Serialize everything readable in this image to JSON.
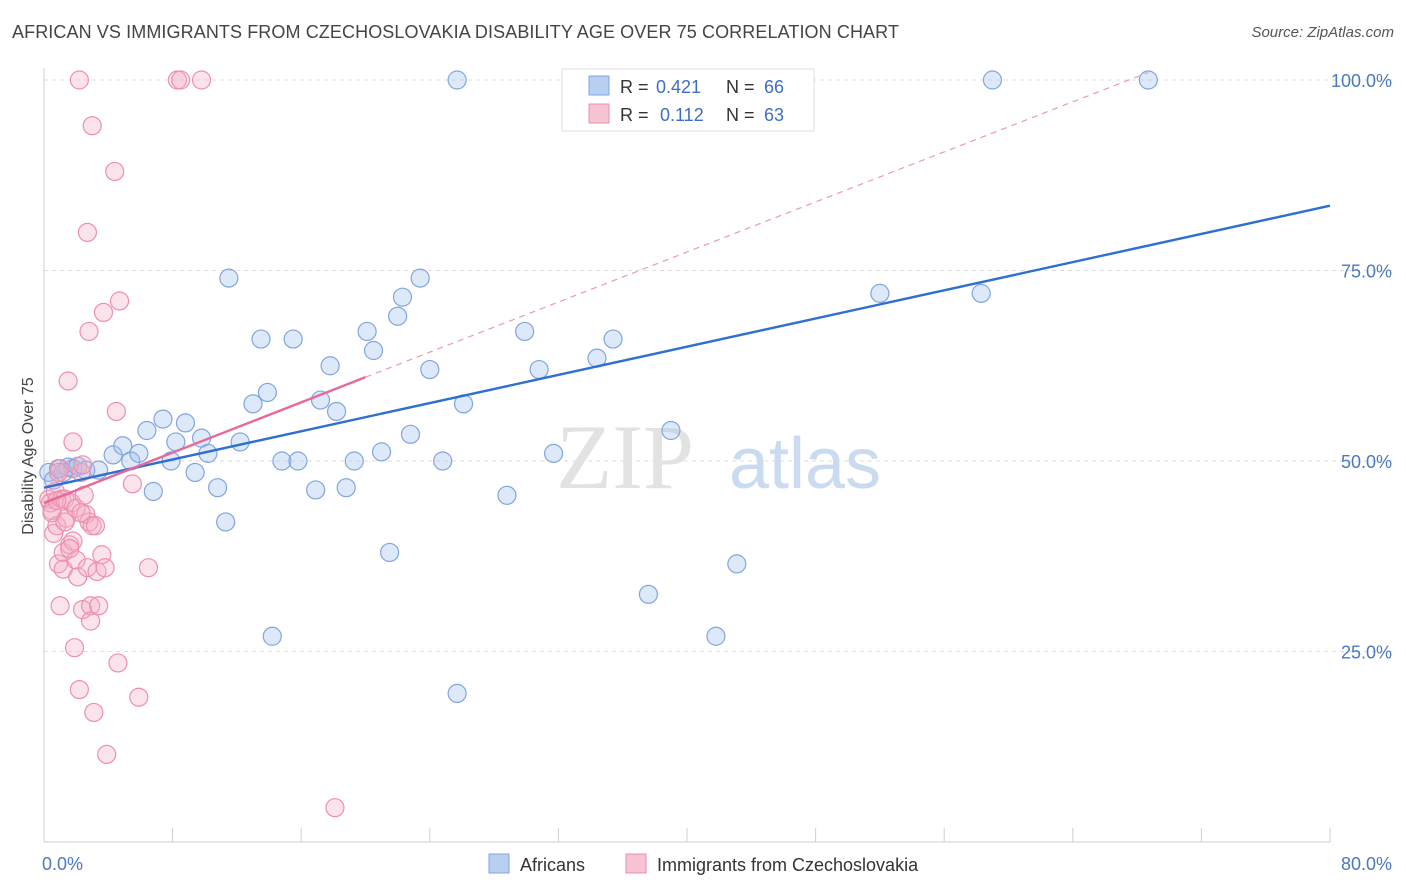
{
  "header": {
    "title": "AFRICAN VS IMMIGRANTS FROM CZECHOSLOVAKIA DISABILITY AGE OVER 75 CORRELATION CHART",
    "source": "Source: ZipAtlas.com"
  },
  "watermark": {
    "zip": "ZIP",
    "atlas": "atlas"
  },
  "chart_data": {
    "type": "scatter",
    "title": "AFRICAN VS IMMIGRANTS FROM CZECHOSLOVAKIA DISABILITY AGE OVER 75 CORRELATION CHART",
    "xlabel": "",
    "ylabel": "Disability Age Over 75",
    "xlim": [
      0,
      80
    ],
    "ylim": [
      0,
      105
    ],
    "x_tick_labels": {
      "min": "0.0%",
      "max": "80.0%"
    },
    "y_ticks": [
      {
        "value": 25,
        "label": "25.0%"
      },
      {
        "value": 50,
        "label": "50.0%"
      },
      {
        "value": 75,
        "label": "75.0%"
      },
      {
        "value": 100,
        "label": "100.0%"
      }
    ],
    "legend": {
      "r_label": "R =",
      "n_label": "N =",
      "entries": [
        {
          "name": "Africans",
          "r": "0.421",
          "n": "66",
          "color": "#7fa6e0",
          "fill": "#b9cff2"
        },
        {
          "name": "Immigrants from Czechoslovakia",
          "r": "0.112",
          "n": "63",
          "color": "#ee8fab",
          "fill": "#f6c3d3"
        }
      ]
    },
    "series": [
      {
        "name": "Africans",
        "color": "#7fa6e0",
        "trend": {
          "x0": 0.0,
          "y0": 46.5,
          "x1": 80.0,
          "y1": 83.5,
          "color": "#2e6fd1"
        },
        "points": [
          [
            0.3,
            48.5
          ],
          [
            0.6,
            47.5
          ],
          [
            0.9,
            49.0
          ],
          [
            1.2,
            48.5
          ],
          [
            1.5,
            49.2
          ],
          [
            1.8,
            49.0
          ],
          [
            2.1,
            49.3
          ],
          [
            2.6,
            48.8
          ],
          [
            3.4,
            48.8
          ],
          [
            4.3,
            50.8
          ],
          [
            4.9,
            52.0
          ],
          [
            5.4,
            50.0
          ],
          [
            5.9,
            51.0
          ],
          [
            6.4,
            54.0
          ],
          [
            6.8,
            46.0
          ],
          [
            7.4,
            55.5
          ],
          [
            7.9,
            50.0
          ],
          [
            8.2,
            52.5
          ],
          [
            8.8,
            55.0
          ],
          [
            9.4,
            48.5
          ],
          [
            9.8,
            53.0
          ],
          [
            10.2,
            51.0
          ],
          [
            10.8,
            46.5
          ],
          [
            11.3,
            42.0
          ],
          [
            11.5,
            74.0
          ],
          [
            12.2,
            52.5
          ],
          [
            13.0,
            57.5
          ],
          [
            13.5,
            66.0
          ],
          [
            13.9,
            59.0
          ],
          [
            14.2,
            27.0
          ],
          [
            14.8,
            50.0
          ],
          [
            15.5,
            66.0
          ],
          [
            15.8,
            50.0
          ],
          [
            16.9,
            46.2
          ],
          [
            17.2,
            58.0
          ],
          [
            17.8,
            62.5
          ],
          [
            18.2,
            56.5
          ],
          [
            18.8,
            46.5
          ],
          [
            19.3,
            50.0
          ],
          [
            20.1,
            67.0
          ],
          [
            20.5,
            64.5
          ],
          [
            21.0,
            51.2
          ],
          [
            21.5,
            38.0
          ],
          [
            22.0,
            69.0
          ],
          [
            22.3,
            71.5
          ],
          [
            22.8,
            53.5
          ],
          [
            23.4,
            74.0
          ],
          [
            24.0,
            62.0
          ],
          [
            24.8,
            50.0
          ],
          [
            25.7,
            19.5
          ],
          [
            25.7,
            100
          ],
          [
            26.1,
            57.5
          ],
          [
            28.8,
            45.5
          ],
          [
            29.9,
            67.0
          ],
          [
            30.8,
            62.0
          ],
          [
            31.7,
            51.0
          ],
          [
            34.4,
            63.5
          ],
          [
            35.4,
            66.0
          ],
          [
            37.6,
            32.5
          ],
          [
            39.0,
            54.0
          ],
          [
            41.8,
            27.0
          ],
          [
            43.1,
            36.5
          ],
          [
            52.0,
            72.0
          ],
          [
            58.3,
            72.0
          ],
          [
            59.0,
            100
          ],
          [
            68.7,
            100
          ]
        ]
      },
      {
        "name": "Immigrants from Czechoslovakia",
        "color": "#ee8fab",
        "trend": {
          "x0": 0.0,
          "y0": 44.5,
          "x1": 20.0,
          "y1": 61.0,
          "color": "#e8689a"
        },
        "trend_extension": {
          "x0": 20.0,
          "y0": 61.0,
          "x1": 68.7,
          "y1": 101.0,
          "color": "#e89bb3"
        },
        "points": [
          [
            0.3,
            45.0
          ],
          [
            0.4,
            44.5
          ],
          [
            0.5,
            43.5
          ],
          [
            0.6,
            40.5
          ],
          [
            0.7,
            46.0
          ],
          [
            0.8,
            41.5
          ],
          [
            0.9,
            36.5
          ],
          [
            1.0,
            31.0
          ],
          [
            1.0,
            49.0
          ],
          [
            1.1,
            45.0
          ],
          [
            1.2,
            38.0
          ],
          [
            1.2,
            35.8
          ],
          [
            1.3,
            45.0
          ],
          [
            1.4,
            42.5
          ],
          [
            1.5,
            60.5
          ],
          [
            1.6,
            39.0
          ],
          [
            1.7,
            44.5
          ],
          [
            1.8,
            52.5
          ],
          [
            1.8,
            39.5
          ],
          [
            1.9,
            25.5
          ],
          [
            2.0,
            43.8
          ],
          [
            2.0,
            37.0
          ],
          [
            2.1,
            34.8
          ],
          [
            2.2,
            20.0
          ],
          [
            2.2,
            100
          ],
          [
            2.3,
            48.5
          ],
          [
            2.4,
            49.5
          ],
          [
            2.4,
            30.5
          ],
          [
            2.5,
            45.5
          ],
          [
            2.6,
            43.0
          ],
          [
            2.7,
            36.0
          ],
          [
            2.7,
            80.0
          ],
          [
            2.8,
            42.0
          ],
          [
            2.8,
            67.0
          ],
          [
            2.9,
            31.0
          ],
          [
            2.9,
            29.0
          ],
          [
            3.0,
            94.0
          ],
          [
            3.0,
            41.5
          ],
          [
            3.1,
            17.0
          ],
          [
            3.2,
            41.5
          ],
          [
            3.3,
            35.5
          ],
          [
            3.4,
            31.0
          ],
          [
            3.6,
            37.7
          ],
          [
            3.7,
            69.5
          ],
          [
            3.8,
            36.0
          ],
          [
            3.9,
            11.5
          ],
          [
            4.4,
            88.0
          ],
          [
            4.5,
            56.5
          ],
          [
            4.6,
            23.5
          ],
          [
            4.7,
            71.0
          ],
          [
            5.5,
            47.0
          ],
          [
            5.9,
            19.0
          ],
          [
            6.5,
            36.0
          ],
          [
            8.3,
            100
          ],
          [
            8.5,
            100
          ],
          [
            9.8,
            100
          ],
          [
            18.1,
            4.5
          ],
          [
            0.5,
            43.2
          ],
          [
            1.3,
            42.0
          ],
          [
            0.8,
            44.8
          ],
          [
            1.6,
            38.5
          ],
          [
            2.3,
            43.2
          ],
          [
            0.9,
            48.5
          ]
        ]
      }
    ]
  }
}
